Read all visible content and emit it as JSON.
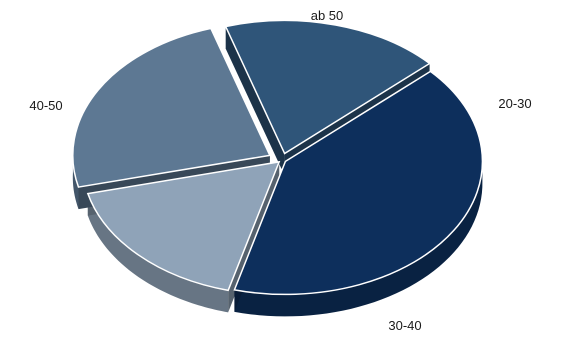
{
  "chart_data": {
    "type": "pie",
    "style": "3d-exploded",
    "categories": [
      "ab 50",
      "20-30",
      "30-40",
      "40-50"
    ],
    "values": [
      17,
      24,
      18,
      41
    ],
    "colors": {
      "ab 50": "#8fa3b8",
      "20-30": "#5d7893",
      "30-40": "#2f5579",
      "40-50": "#0d2f5c"
    },
    "title": "",
    "legend": "none"
  }
}
